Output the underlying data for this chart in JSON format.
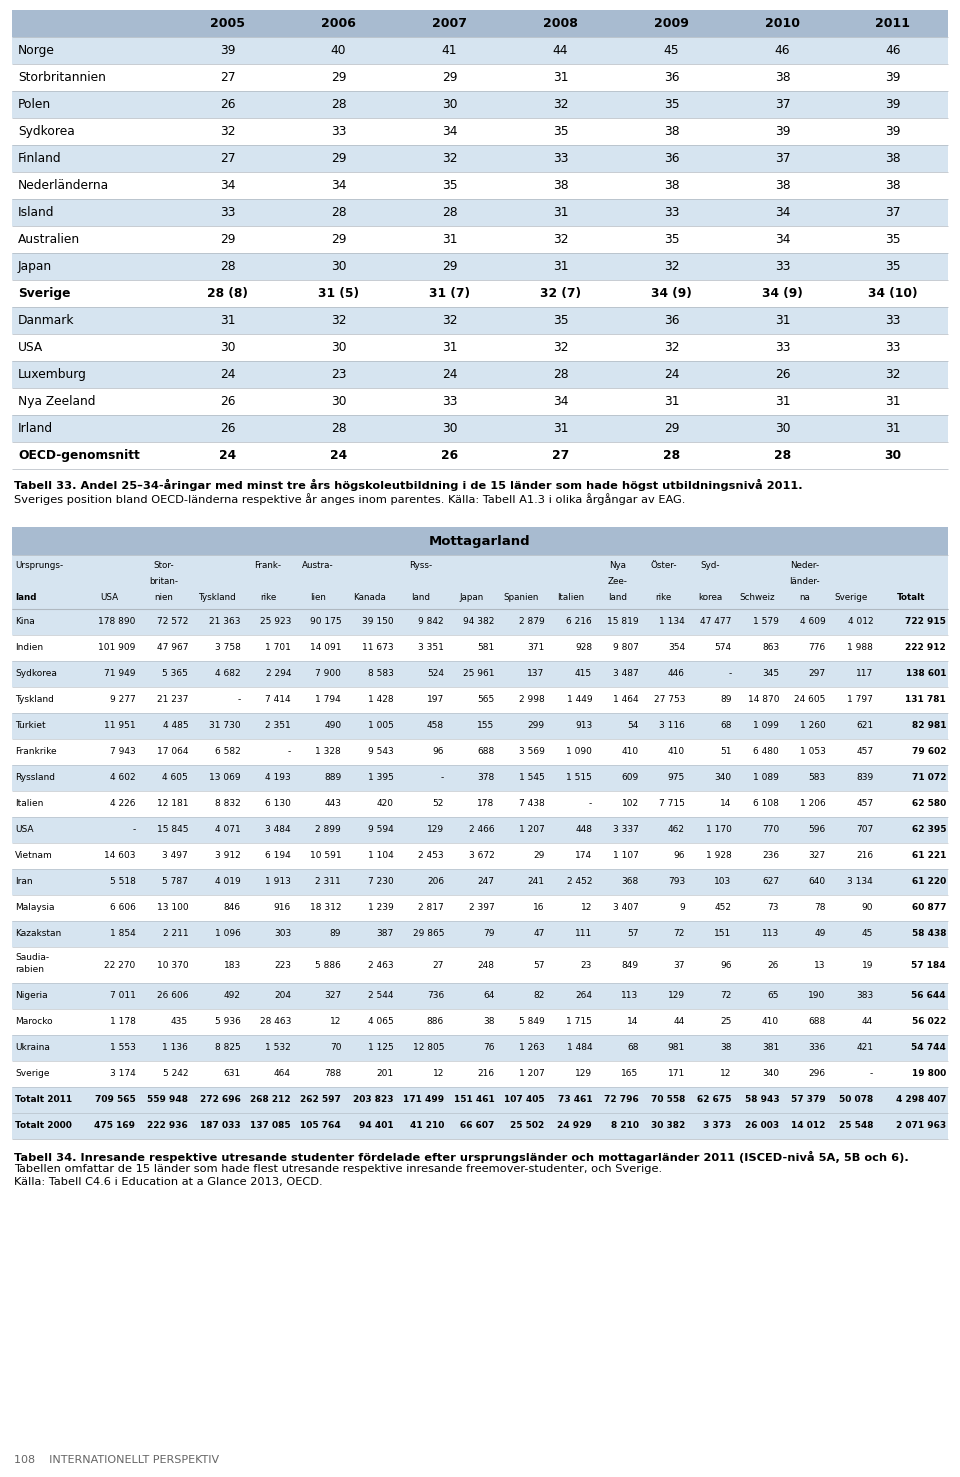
{
  "table1_header": [
    "",
    "2005",
    "2006",
    "2007",
    "2008",
    "2009",
    "2010",
    "2011"
  ],
  "table1_rows": [
    [
      "Norge",
      "39",
      "40",
      "41",
      "44",
      "45",
      "46",
      "46"
    ],
    [
      "Storbritannien",
      "27",
      "29",
      "29",
      "31",
      "36",
      "38",
      "39"
    ],
    [
      "Polen",
      "26",
      "28",
      "30",
      "32",
      "35",
      "37",
      "39"
    ],
    [
      "Sydkorea",
      "32",
      "33",
      "34",
      "35",
      "38",
      "39",
      "39"
    ],
    [
      "Finland",
      "27",
      "29",
      "32",
      "33",
      "36",
      "37",
      "38"
    ],
    [
      "Nederländerna",
      "34",
      "34",
      "35",
      "38",
      "38",
      "38",
      "38"
    ],
    [
      "Island",
      "33",
      "28",
      "28",
      "31",
      "33",
      "34",
      "37"
    ],
    [
      "Australien",
      "29",
      "29",
      "31",
      "32",
      "35",
      "34",
      "35"
    ],
    [
      "Japan",
      "28",
      "30",
      "29",
      "31",
      "32",
      "33",
      "35"
    ],
    [
      "Sverige",
      "28 (8)",
      "31 (5)",
      "31 (7)",
      "32 (7)",
      "34 (9)",
      "34 (9)",
      "34 (10)"
    ],
    [
      "Danmark",
      "31",
      "32",
      "32",
      "35",
      "36",
      "31",
      "33"
    ],
    [
      "USA",
      "30",
      "30",
      "31",
      "32",
      "32",
      "33",
      "33"
    ],
    [
      "Luxemburg",
      "24",
      "23",
      "24",
      "28",
      "24",
      "26",
      "32"
    ],
    [
      "Nya Zeeland",
      "26",
      "30",
      "33",
      "34",
      "31",
      "31",
      "31"
    ],
    [
      "Irland",
      "26",
      "28",
      "30",
      "31",
      "29",
      "30",
      "31"
    ],
    [
      "OECD-genomsnitt",
      "24",
      "24",
      "26",
      "27",
      "28",
      "28",
      "30"
    ]
  ],
  "table1_bold_rows": [
    9,
    15
  ],
  "table1_caption_bold": "Tabell 33. Andel 25–34-åringar med minst tre års högskoleutbildning i de 15 länder som hade högst utbildningsnivå 2011.",
  "table1_caption_normal": " Sveriges position bland OECD-länderna respektive år anges inom parentes. Källa: Tabell A1.3 i olika årgångar av EAG.",
  "table2_title": "Mottagarland",
  "table2_header_top": [
    "",
    "Stor-",
    "",
    "Frank-",
    "Austra-",
    "",
    "Ryss-",
    "",
    "",
    "",
    "Nya",
    "Öster-",
    "Syd-",
    "",
    "Neder-",
    "",
    ""
  ],
  "table2_header_mid": [
    "",
    "britan-",
    "",
    "rike",
    "lien",
    "",
    "land",
    "",
    "",
    "",
    "Zee-",
    "rike",
    "korea",
    "",
    "länder-",
    "",
    ""
  ],
  "table2_header_bot": [
    "land",
    "USA",
    "nien",
    "Tyskland",
    "",
    "Kanada",
    "",
    "Japan",
    "Spanien",
    "Italien",
    "land",
    "",
    "",
    "Schweiz",
    "na",
    "Sverige",
    "Totalt"
  ],
  "table2_col_labels": [
    "Ursprungs-\nland",
    "USA",
    "Stor-\nbritan-\nnien",
    "Tyskland",
    "Frank-\nrike",
    "Austra-\nlien",
    "Kanada",
    "Ryss-\nland",
    "Japan",
    "Spanien",
    "Italien",
    "Nya\nZee-\nland",
    "Öster-\nrike",
    "Syd-\nkorea",
    "Schweiz",
    "Neder-\nländer-\nna",
    "Sverige",
    "Totalt"
  ],
  "table2_rows": [
    [
      "Kina",
      "178 890",
      "72 572",
      "21 363",
      "25 923",
      "90 175",
      "39 150",
      "9 842",
      "94 382",
      "2 879",
      "6 216",
      "15 819",
      "1 134",
      "47 477",
      "1 579",
      "4 609",
      "4 012",
      "722 915"
    ],
    [
      "Indien",
      "101 909",
      "47 967",
      "3 758",
      "1 701",
      "14 091",
      "11 673",
      "3 351",
      "581",
      "371",
      "928",
      "9 807",
      "354",
      "574",
      "863",
      "776",
      "1 988",
      "222 912"
    ],
    [
      "Sydkorea",
      "71 949",
      "5 365",
      "4 682",
      "2 294",
      "7 900",
      "8 583",
      "524",
      "25 961",
      "137",
      "415",
      "3 487",
      "446",
      "-",
      "345",
      "297",
      "117",
      "138 601"
    ],
    [
      "Tyskland",
      "9 277",
      "21 237",
      "-",
      "7 414",
      "1 794",
      "1 428",
      "197",
      "565",
      "2 998",
      "1 449",
      "1 464",
      "27 753",
      "89",
      "14 870",
      "24 605",
      "1 797",
      "131 781"
    ],
    [
      "Turkiet",
      "11 951",
      "4 485",
      "31 730",
      "2 351",
      "490",
      "1 005",
      "458",
      "155",
      "299",
      "913",
      "54",
      "3 116",
      "68",
      "1 099",
      "1 260",
      "621",
      "82 981"
    ],
    [
      "Frankrike",
      "7 943",
      "17 064",
      "6 582",
      "-",
      "1 328",
      "9 543",
      "96",
      "688",
      "3 569",
      "1 090",
      "410",
      "410",
      "51",
      "6 480",
      "1 053",
      "457",
      "79 602"
    ],
    [
      "Ryssland",
      "4 602",
      "4 605",
      "13 069",
      "4 193",
      "889",
      "1 395",
      "-",
      "378",
      "1 545",
      "1 515",
      "609",
      "975",
      "340",
      "1 089",
      "583",
      "839",
      "71 072"
    ],
    [
      "Italien",
      "4 226",
      "12 181",
      "8 832",
      "6 130",
      "443",
      "420",
      "52",
      "178",
      "7 438",
      "-",
      "102",
      "7 715",
      "14",
      "6 108",
      "1 206",
      "457",
      "62 580"
    ],
    [
      "USA",
      "-",
      "15 845",
      "4 071",
      "3 484",
      "2 899",
      "9 594",
      "129",
      "2 466",
      "1 207",
      "448",
      "3 337",
      "462",
      "1 170",
      "770",
      "596",
      "707",
      "62 395"
    ],
    [
      "Vietnam",
      "14 603",
      "3 497",
      "3 912",
      "6 194",
      "10 591",
      "1 104",
      "2 453",
      "3 672",
      "29",
      "174",
      "1 107",
      "96",
      "1 928",
      "236",
      "327",
      "216",
      "61 221"
    ],
    [
      "Iran",
      "5 518",
      "5 787",
      "4 019",
      "1 913",
      "2 311",
      "7 230",
      "206",
      "247",
      "241",
      "2 452",
      "368",
      "793",
      "103",
      "627",
      "640",
      "3 134",
      "61 220"
    ],
    [
      "Malaysia",
      "6 606",
      "13 100",
      "846",
      "916",
      "18 312",
      "1 239",
      "2 817",
      "2 397",
      "16",
      "12",
      "3 407",
      "9",
      "452",
      "73",
      "78",
      "90",
      "60 877"
    ],
    [
      "Kazakstan",
      "1 854",
      "2 211",
      "1 096",
      "303",
      "89",
      "387",
      "29 865",
      "79",
      "47",
      "111",
      "57",
      "72",
      "151",
      "113",
      "49",
      "45",
      "58 438"
    ],
    [
      "Saudia-\nrabien",
      "22 270",
      "10 370",
      "183",
      "223",
      "5 886",
      "2 463",
      "27",
      "248",
      "57",
      "23",
      "849",
      "37",
      "96",
      "26",
      "13",
      "19",
      "57 184"
    ],
    [
      "Nigeria",
      "7 011",
      "26 606",
      "492",
      "204",
      "327",
      "2 544",
      "736",
      "64",
      "82",
      "264",
      "113",
      "129",
      "72",
      "65",
      "190",
      "383",
      "56 644"
    ],
    [
      "Marocko",
      "1 178",
      "435",
      "5 936",
      "28 463",
      "12",
      "4 065",
      "886",
      "38",
      "5 849",
      "1 715",
      "14",
      "44",
      "25",
      "410",
      "688",
      "44",
      "56 022"
    ],
    [
      "Ukraina",
      "1 553",
      "1 136",
      "8 825",
      "1 532",
      "70",
      "1 125",
      "12 805",
      "76",
      "1 263",
      "1 484",
      "68",
      "981",
      "38",
      "381",
      "336",
      "421",
      "54 744"
    ],
    [
      "Sverige",
      "3 174",
      "5 242",
      "631",
      "464",
      "788",
      "201",
      "12",
      "216",
      "1 207",
      "129",
      "165",
      "171",
      "12",
      "340",
      "296",
      "-",
      "19 800"
    ],
    [
      "Totalt 2011",
      "709 565",
      "559 948",
      "272 696",
      "268 212",
      "262 597",
      "203 823",
      "171 499",
      "151 461",
      "107 405",
      "73 461",
      "72 796",
      "70 558",
      "62 675",
      "58 943",
      "57 379",
      "50 078",
      "4 298 407"
    ],
    [
      "Totalt 2000",
      "475 169",
      "222 936",
      "187 033",
      "137 085",
      "105 764",
      "94 401",
      "41 210",
      "66 607",
      "25 502",
      "24 929",
      "8 210",
      "30 382",
      "3 373",
      "26 003",
      "14 012",
      "25 548",
      "2 071 963"
    ]
  ],
  "table2_bold_rows": [
    18,
    19
  ],
  "table2_caption_bold": "Tabell 34. Inresande respektive utresande studenter fördelade efter ursprungsländer och mottagarländer 2011 (ISCED-nivå 5A, 5B och 6).",
  "table2_caption_normal": " Tabellen omfattar de 15 länder som hade flest utresande respektive inresande freemover-studenter, och Sverige.",
  "table2_caption3": "Källa: Tabell C4.6 i Education at a Glance 2013, OECD.",
  "footer": "108    INTERNATIONELLT PERSPEKTIV",
  "page_bg": "#f0f0f0",
  "header_bg": "#a8bbd0",
  "alt_row_bg": "#d6e4f0",
  "white_bg": "#ffffff",
  "line_color": "#b0b8c0"
}
